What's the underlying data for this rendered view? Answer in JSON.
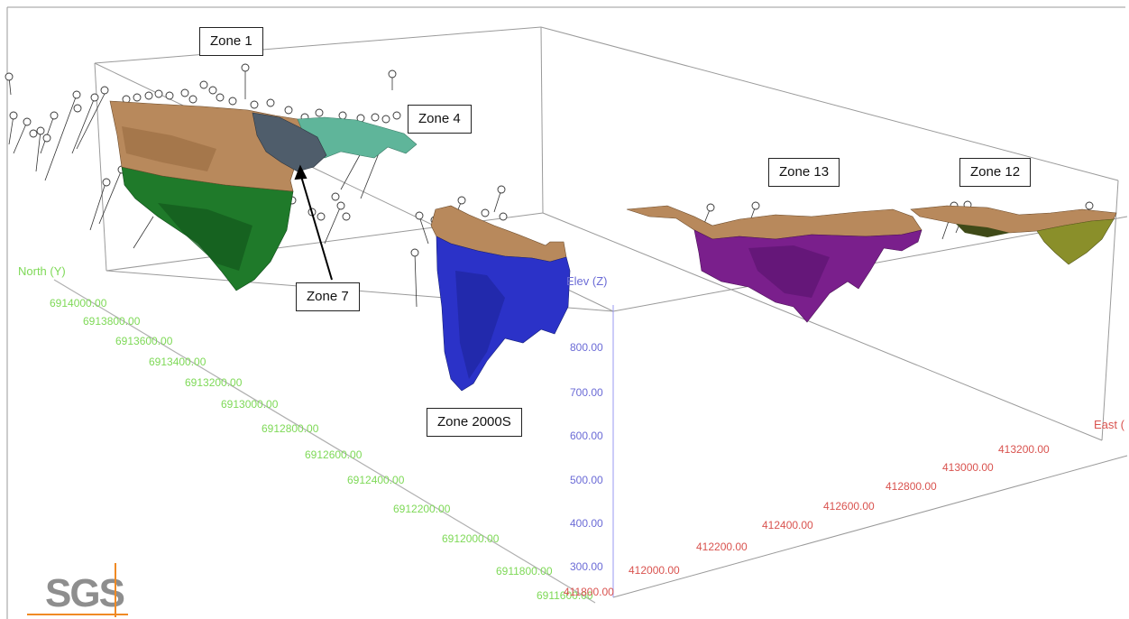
{
  "callouts": {
    "zone1": "Zone 1",
    "zone4": "Zone 4",
    "zone7": "Zone 7",
    "zone13": "Zone 13",
    "zone12": "Zone 12",
    "zone2000s": "Zone 2000S"
  },
  "axes": {
    "north": {
      "title": "North (Y)",
      "color": "#7ed957",
      "ticks": [
        "6914000.00",
        "6913800.00",
        "6913600.00",
        "6913400.00",
        "6913200.00",
        "6913000.00",
        "6912800.00",
        "6912600.00",
        "6912400.00",
        "6912200.00",
        "6912000.00",
        "6911800.00",
        "6911600.00"
      ]
    },
    "elev": {
      "title": "Elev (Z)",
      "color": "#6b6bd6",
      "ticks": [
        "800.00",
        "700.00",
        "600.00",
        "500.00",
        "400.00",
        "300.00"
      ]
    },
    "east": {
      "title": "East (",
      "color": "#d9534f",
      "ticks": [
        "411800.00",
        "412000.00",
        "412200.00",
        "412400.00",
        "412600.00",
        "412800.00",
        "413000.00",
        "413200.00"
      ]
    }
  },
  "logo": {
    "text": "SGS",
    "accent": "#f08a24"
  },
  "colors": {
    "cap": "#b8895c",
    "zone1_green": "#1f7a2a",
    "zone4_teal": "#5fb59a",
    "zone7_slate": "#4f5d6b",
    "zone2000s_blue": "#2b32c8",
    "zone13_purple": "#7a1f8c",
    "zone12_olive": "#8a8f2a",
    "box_line": "#9a9a9a"
  }
}
